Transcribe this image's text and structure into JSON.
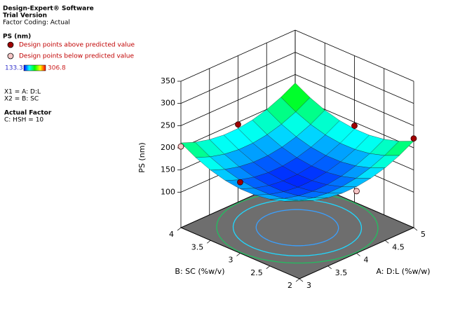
{
  "header": {
    "software": "Design-Expert® Software",
    "version": "Trial Version",
    "coding": "Factor Coding: Actual"
  },
  "factors": {
    "x1": "X1 = A: D:L",
    "x2": "X2 = B: SC",
    "actual_title": "Actual Factor",
    "actual": "C: HSH = 10"
  },
  "chart_data": {
    "type": "surface3d",
    "legend_title": "PS (nm)",
    "xlabel": "A: D:L (%w/w)",
    "ylabel": "B: SC (%w/v)",
    "zlabel": "PS (nm)",
    "xlim": [
      3,
      5
    ],
    "ylim": [
      2,
      4
    ],
    "zlim": [
      20,
      350
    ],
    "xticks": [
      3,
      3.5,
      4,
      4.5,
      5
    ],
    "yticks": [
      2,
      2.5,
      3,
      3.5,
      4
    ],
    "zticks": [
      100,
      150,
      200,
      250,
      300,
      350
    ],
    "colorscale": {
      "min": 133.3,
      "max": 306.8,
      "colors": [
        "#0000ff",
        "#00ffff",
        "#00ff00",
        "#ffff00",
        "#ff0000"
      ],
      "min_color": "#3333cc",
      "max_color": "#cc2222"
    },
    "floor_color": "#6e6e6e",
    "surface": {
      "x": [
        3,
        3.25,
        3.5,
        3.75,
        4,
        4.25,
        4.5,
        4.75,
        5
      ],
      "y": [
        2,
        2.25,
        2.5,
        2.75,
        3,
        3.25,
        3.5,
        3.75,
        4
      ],
      "z": [
        [
          195,
          182.2,
          173.8,
          169.7,
          170,
          174.7,
          183.8,
          197.2,
          215
        ],
        [
          180.4,
          167.6,
          159.2,
          155.1,
          155.4,
          160.1,
          169.2,
          182.6,
          200.4
        ],
        [
          170.5,
          157.7,
          149.3,
          145.2,
          145.5,
          150.2,
          159.3,
          172.7,
          190.5
        ],
        [
          165.4,
          152.6,
          144.2,
          140.1,
          140.4,
          145.1,
          154.2,
          167.6,
          185.4
        ],
        [
          165,
          152.2,
          143.8,
          139.7,
          140,
          144.7,
          153.8,
          167.2,
          185
        ],
        [
          169.4,
          156.6,
          148.2,
          144.1,
          144.4,
          149.1,
          158.2,
          171.6,
          189.4
        ],
        [
          178.5,
          165.7,
          157.3,
          153.2,
          153.5,
          158.2,
          167.3,
          180.7,
          198.5
        ],
        [
          192.4,
          179.6,
          171.2,
          167.1,
          167.4,
          172.1,
          181.2,
          194.6,
          212.4
        ],
        [
          211,
          198.2,
          189.8,
          185.7,
          186,
          190.7,
          199.8,
          213.2,
          231
        ]
      ]
    },
    "series": [
      {
        "name": "Design points above predicted value",
        "color": "#a00000",
        "x": [
          5,
          4,
          5,
          3
        ],
        "y": [
          2,
          4,
          3,
          3
        ],
        "z": [
          221,
          195,
          192,
          180
        ]
      },
      {
        "name": "Design points below predicted value",
        "color": "#f5c6c6",
        "x": [
          3,
          4
        ],
        "y": [
          4,
          2
        ],
        "z": [
          203,
          160
        ]
      }
    ]
  }
}
